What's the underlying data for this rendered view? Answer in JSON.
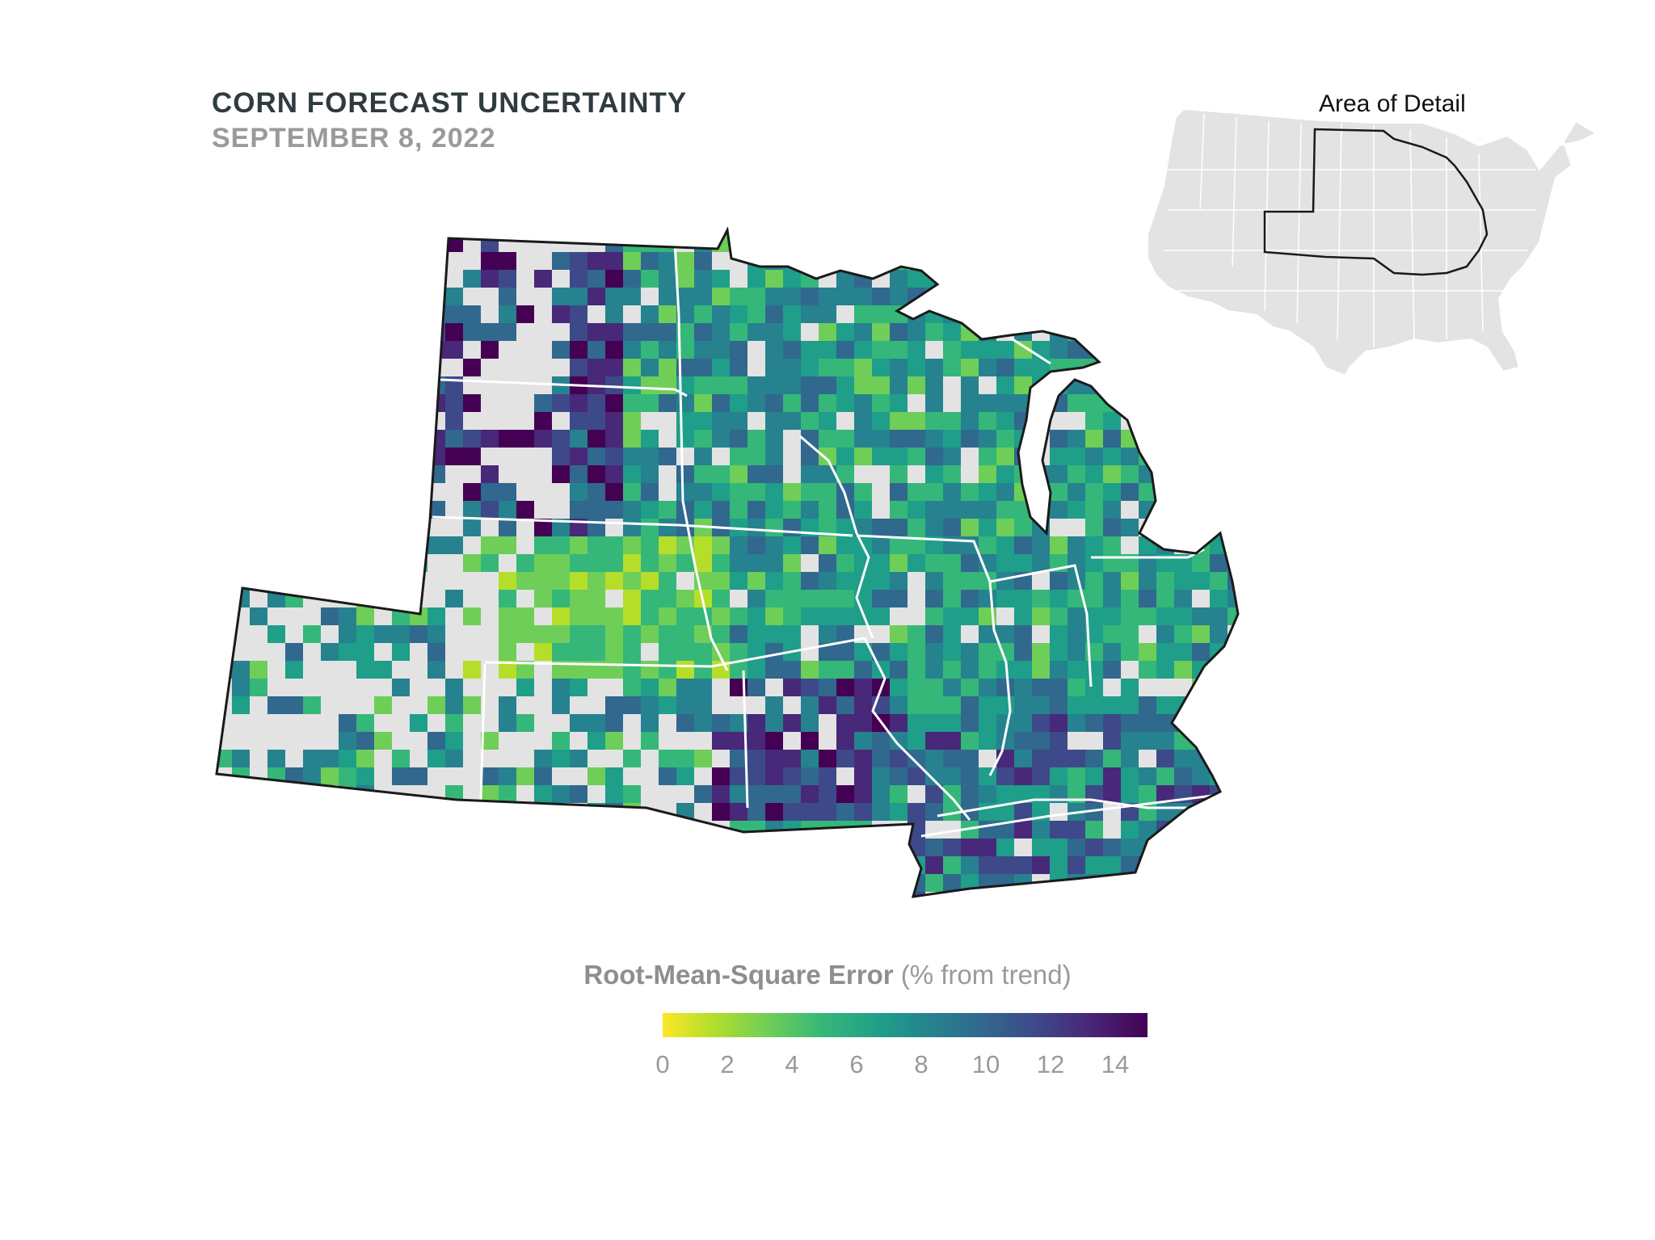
{
  "title": "CORN FORECAST UNCERTAINTY",
  "subtitle": "SEPTEMBER 8, 2022",
  "inset": {
    "title": "Area of Detail"
  },
  "legend": {
    "title_main": "Root-Mean-Square Error",
    "title_unit": "(% from trend)",
    "ticks": [
      "0",
      "2",
      "4",
      "6",
      "8",
      "10",
      "12",
      "14"
    ],
    "range": [
      0,
      15
    ],
    "colors": [
      "#fde725",
      "#b5de2b",
      "#6ece58",
      "#35b779",
      "#1f9e89",
      "#26828e",
      "#31688e",
      "#3e4989",
      "#482878",
      "#440154"
    ]
  },
  "map": {
    "no_data_color": "#e3e3e3",
    "border_color": "#ffffff",
    "outline_color": "#1a1a1a"
  }
}
